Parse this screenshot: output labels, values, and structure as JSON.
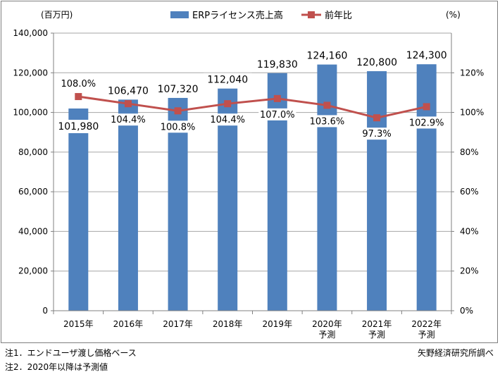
{
  "chart_data": {
    "type": "bar+line",
    "left_unit_label": "(百万円)",
    "right_unit_label": "(%)",
    "categories": [
      [
        "2015年"
      ],
      [
        "2016年"
      ],
      [
        "2017年"
      ],
      [
        "2018年"
      ],
      [
        "2019年"
      ],
      [
        "2020年",
        "予測"
      ],
      [
        "2021年",
        "予測"
      ],
      [
        "2022年",
        "予測"
      ]
    ],
    "series": [
      {
        "name": "ERPライセンス売上高",
        "kind": "bar",
        "axis": "left",
        "color": "#4f81bd",
        "values": [
          101980,
          106470,
          107320,
          112040,
          119830,
          124160,
          120800,
          124300
        ],
        "labels": [
          "101,980",
          "106,470",
          "107,320",
          "112,040",
          "119,830",
          "124,160",
          "120,800",
          "124,300"
        ]
      },
      {
        "name": "前年比",
        "kind": "line",
        "axis": "right",
        "color": "#c0504d",
        "values": [
          108.0,
          104.4,
          100.8,
          104.4,
          107.0,
          103.6,
          97.3,
          102.9
        ],
        "labels": [
          "108.0%",
          "104.4%",
          "100.8%",
          "104.4%",
          "107.0%",
          "103.6%",
          "97.3%",
          "102.9%"
        ]
      }
    ],
    "left_axis": {
      "min": 0,
      "max": 140000,
      "step": 20000,
      "ticks": [
        "0",
        "20,000",
        "40,000",
        "60,000",
        "80,000",
        "100,000",
        "120,000",
        "140,000"
      ]
    },
    "right_axis": {
      "min": 0,
      "max": 140,
      "step": 20,
      "ticks": [
        "0%",
        "20%",
        "40%",
        "60%",
        "80%",
        "100%",
        "120%"
      ]
    },
    "grid": true,
    "legend_position": "top"
  },
  "notes": {
    "note1": "注1．エンドユーザ渡し価格ベース",
    "note2": "注2．2020年以降は予測値",
    "source": "矢野経済研究所調べ"
  }
}
